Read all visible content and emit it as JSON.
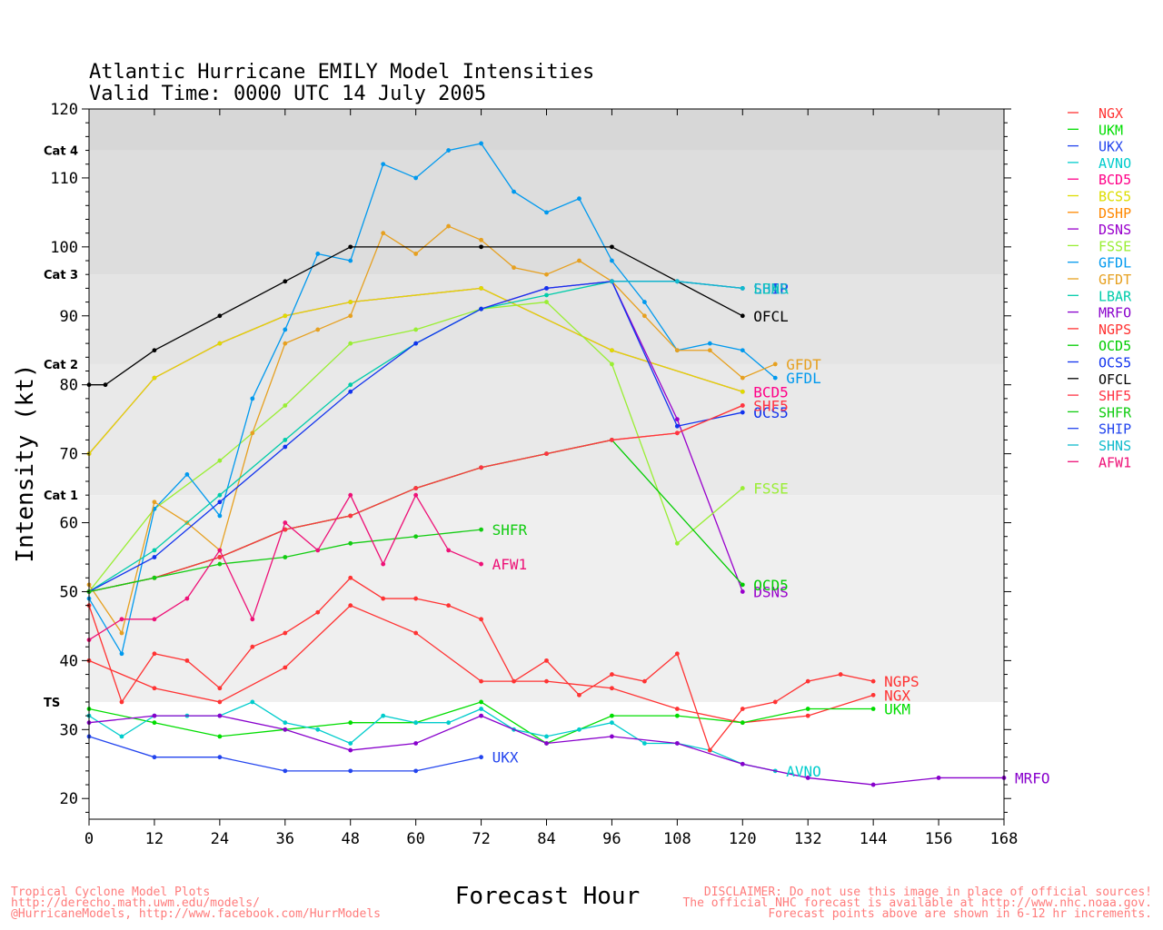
{
  "chart_data": {
    "type": "line",
    "title": "Atlantic Hurricane EMILY Model Intensities",
    "subtitle": "Valid Time: 0000 UTC 14 July 2005",
    "xlabel": "Forecast Hour",
    "ylabel": "Intensity (kt)",
    "xlim": [
      0,
      168
    ],
    "ylim": [
      17,
      120
    ],
    "x_ticks": [
      0,
      12,
      24,
      36,
      48,
      60,
      72,
      84,
      96,
      108,
      120,
      132,
      144,
      156,
      168
    ],
    "y_ticks": [
      20,
      30,
      40,
      50,
      60,
      70,
      80,
      90,
      100,
      110,
      120
    ],
    "grid": false,
    "legend_position": "right",
    "category_bands": [
      {
        "label": "TS",
        "from": 34,
        "to": 64,
        "color": "#efefef"
      },
      {
        "label": "Cat 1",
        "from": 64,
        "to": 83,
        "color": "#e9e9e9"
      },
      {
        "label": "Cat 2",
        "from": 83,
        "to": 96,
        "color": "#e4e4e4"
      },
      {
        "label": "Cat 3",
        "from": 96,
        "to": 114,
        "color": "#dddddd"
      },
      {
        "label": "Cat 4",
        "from": 114,
        "to": 120,
        "color": "#d7d7d7"
      }
    ],
    "series": [
      {
        "name": "NGX",
        "color": "#ff3333",
        "end_label": "NGX",
        "points": [
          [
            0,
            40
          ],
          [
            12,
            36
          ],
          [
            24,
            34
          ],
          [
            36,
            39
          ],
          [
            48,
            48
          ],
          [
            60,
            44
          ],
          [
            72,
            37
          ],
          [
            84,
            37
          ],
          [
            96,
            36
          ],
          [
            108,
            33
          ],
          [
            120,
            31
          ],
          [
            132,
            32
          ],
          [
            144,
            35
          ]
        ]
      },
      {
        "name": "UKM",
        "color": "#00dd00",
        "end_label": "UKM",
        "points": [
          [
            0,
            33
          ],
          [
            12,
            31
          ],
          [
            24,
            29
          ],
          [
            36,
            30
          ],
          [
            48,
            31
          ],
          [
            60,
            31
          ],
          [
            72,
            34
          ],
          [
            84,
            28
          ],
          [
            96,
            32
          ],
          [
            108,
            32
          ],
          [
            120,
            31
          ],
          [
            132,
            33
          ],
          [
            144,
            33
          ]
        ]
      },
      {
        "name": "UKX",
        "color": "#2244ee",
        "end_label": "UKX",
        "points": [
          [
            0,
            29
          ],
          [
            12,
            26
          ],
          [
            24,
            26
          ],
          [
            36,
            24
          ],
          [
            48,
            24
          ],
          [
            60,
            24
          ],
          [
            72,
            26
          ]
        ]
      },
      {
        "name": "AVNO",
        "color": "#00cccc",
        "end_label": "AVNO",
        "points": [
          [
            0,
            32
          ],
          [
            6,
            29
          ],
          [
            12,
            32
          ],
          [
            18,
            32
          ],
          [
            24,
            32
          ],
          [
            30,
            34
          ],
          [
            36,
            31
          ],
          [
            42,
            30
          ],
          [
            48,
            28
          ],
          [
            54,
            32
          ],
          [
            60,
            31
          ],
          [
            66,
            31
          ],
          [
            72,
            33
          ],
          [
            78,
            30
          ],
          [
            84,
            29
          ],
          [
            90,
            30
          ],
          [
            96,
            31
          ],
          [
            102,
            28
          ],
          [
            108,
            28
          ],
          [
            114,
            27
          ],
          [
            120,
            25
          ],
          [
            126,
            24
          ]
        ]
      },
      {
        "name": "BCD5",
        "color": "#ff0088",
        "end_label": "BCD5",
        "points": [
          [
            0,
            70
          ],
          [
            12,
            81
          ],
          [
            24,
            86
          ],
          [
            36,
            90
          ],
          [
            48,
            92
          ],
          [
            72,
            94
          ],
          [
            96,
            85
          ],
          [
            120,
            79
          ]
        ]
      },
      {
        "name": "BCS5",
        "color": "#dddd00",
        "end_label": "",
        "points": [
          [
            0,
            70
          ],
          [
            12,
            81
          ],
          [
            24,
            86
          ],
          [
            36,
            90
          ],
          [
            48,
            92
          ],
          [
            72,
            94
          ],
          [
            96,
            85
          ],
          [
            120,
            79
          ]
        ]
      },
      {
        "name": "DSHP",
        "color": "#ff8800",
        "end_label": "",
        "points": [
          [
            0,
            50
          ],
          [
            12,
            52
          ],
          [
            24,
            55
          ],
          [
            36,
            59
          ],
          [
            48,
            61
          ],
          [
            60,
            65
          ],
          [
            72,
            68
          ],
          [
            84,
            70
          ],
          [
            96,
            72
          ],
          [
            108,
            73
          ],
          [
            120,
            77
          ]
        ]
      },
      {
        "name": "DSNS",
        "color": "#9900cc",
        "end_label": "DSNS",
        "points": [
          [
            72,
            91
          ],
          [
            84,
            94
          ],
          [
            96,
            95
          ],
          [
            108,
            75
          ],
          [
            120,
            50
          ]
        ]
      },
      {
        "name": "FSSE",
        "color": "#99ee33",
        "end_label": "FSSE",
        "points": [
          [
            0,
            50
          ],
          [
            12,
            62
          ],
          [
            24,
            69
          ],
          [
            36,
            77
          ],
          [
            48,
            86
          ],
          [
            60,
            88
          ],
          [
            72,
            91
          ],
          [
            84,
            92
          ],
          [
            96,
            83
          ],
          [
            108,
            57
          ],
          [
            120,
            65
          ]
        ]
      },
      {
        "name": "GFDL",
        "color": "#0099ee",
        "end_label": "GFDL",
        "points": [
          [
            0,
            49
          ],
          [
            6,
            41
          ],
          [
            12,
            62
          ],
          [
            18,
            67
          ],
          [
            24,
            61
          ],
          [
            30,
            78
          ],
          [
            36,
            88
          ],
          [
            42,
            99
          ],
          [
            48,
            98
          ],
          [
            54,
            112
          ],
          [
            60,
            110
          ],
          [
            66,
            114
          ],
          [
            72,
            115
          ],
          [
            78,
            108
          ],
          [
            84,
            105
          ],
          [
            90,
            107
          ],
          [
            96,
            98
          ],
          [
            102,
            92
          ],
          [
            108,
            85
          ],
          [
            114,
            86
          ],
          [
            120,
            85
          ],
          [
            126,
            81
          ]
        ]
      },
      {
        "name": "GFDT",
        "color": "#e6a020",
        "end_label": "GFDT",
        "points": [
          [
            0,
            51
          ],
          [
            6,
            44
          ],
          [
            12,
            63
          ],
          [
            18,
            60
          ],
          [
            24,
            56
          ],
          [
            30,
            73
          ],
          [
            36,
            86
          ],
          [
            42,
            88
          ],
          [
            48,
            90
          ],
          [
            54,
            102
          ],
          [
            60,
            99
          ],
          [
            66,
            103
          ],
          [
            72,
            101
          ],
          [
            78,
            97
          ],
          [
            84,
            96
          ],
          [
            90,
            98
          ],
          [
            96,
            95
          ],
          [
            102,
            90
          ],
          [
            108,
            85
          ],
          [
            114,
            85
          ],
          [
            120,
            81
          ],
          [
            126,
            83
          ]
        ]
      },
      {
        "name": "LBAR",
        "color": "#00ccaa",
        "end_label": "LBAR",
        "points": [
          [
            0,
            50
          ],
          [
            12,
            56
          ],
          [
            24,
            64
          ],
          [
            36,
            72
          ],
          [
            48,
            80
          ],
          [
            60,
            86
          ],
          [
            72,
            91
          ],
          [
            84,
            93
          ],
          [
            96,
            95
          ],
          [
            108,
            95
          ],
          [
            120,
            94
          ]
        ]
      },
      {
        "name": "MRFO",
        "color": "#8800cc",
        "end_label": "MRFO",
        "points": [
          [
            0,
            31
          ],
          [
            12,
            32
          ],
          [
            24,
            32
          ],
          [
            36,
            30
          ],
          [
            48,
            27
          ],
          [
            60,
            28
          ],
          [
            72,
            32
          ],
          [
            84,
            28
          ],
          [
            96,
            29
          ],
          [
            108,
            28
          ],
          [
            120,
            25
          ],
          [
            132,
            23
          ],
          [
            144,
            22
          ],
          [
            156,
            23
          ],
          [
            168,
            23
          ]
        ]
      },
      {
        "name": "NGPS",
        "color": "#ff3333",
        "end_label": "NGPS",
        "points": [
          [
            0,
            48
          ],
          [
            6,
            34
          ],
          [
            12,
            41
          ],
          [
            18,
            40
          ],
          [
            24,
            36
          ],
          [
            30,
            42
          ],
          [
            36,
            44
          ],
          [
            42,
            47
          ],
          [
            48,
            52
          ],
          [
            54,
            49
          ],
          [
            60,
            49
          ],
          [
            66,
            48
          ],
          [
            72,
            46
          ],
          [
            78,
            37
          ],
          [
            84,
            40
          ],
          [
            90,
            35
          ],
          [
            96,
            38
          ],
          [
            102,
            37
          ],
          [
            108,
            41
          ],
          [
            114,
            27
          ],
          [
            120,
            33
          ],
          [
            126,
            34
          ],
          [
            132,
            37
          ],
          [
            138,
            38
          ],
          [
            144,
            37
          ]
        ]
      },
      {
        "name": "OCD5",
        "color": "#00cc00",
        "end_label": "OCD5",
        "points": [
          [
            0,
            50
          ],
          [
            12,
            52
          ],
          [
            24,
            55
          ],
          [
            36,
            59
          ],
          [
            48,
            61
          ],
          [
            60,
            65
          ],
          [
            72,
            68
          ],
          [
            84,
            70
          ],
          [
            96,
            72
          ],
          [
            120,
            51
          ]
        ]
      },
      {
        "name": "OCS5",
        "color": "#1133ee",
        "end_label": "OCS5",
        "points": [
          [
            0,
            50
          ],
          [
            12,
            55
          ],
          [
            24,
            63
          ],
          [
            36,
            71
          ],
          [
            48,
            79
          ],
          [
            60,
            86
          ],
          [
            72,
            91
          ],
          [
            84,
            94
          ],
          [
            96,
            95
          ],
          [
            108,
            74
          ],
          [
            120,
            76
          ]
        ]
      },
      {
        "name": "OFCL",
        "color": "#000000",
        "end_label": "OFCL",
        "points": [
          [
            0,
            80
          ],
          [
            3,
            80
          ],
          [
            12,
            85
          ],
          [
            24,
            90
          ],
          [
            36,
            95
          ],
          [
            48,
            100
          ],
          [
            72,
            100
          ],
          [
            96,
            100
          ],
          [
            120,
            90
          ]
        ]
      },
      {
        "name": "SHF5",
        "color": "#ff3344",
        "end_label": "SHF5",
        "points": [
          [
            0,
            50
          ],
          [
            12,
            52
          ],
          [
            24,
            55
          ],
          [
            36,
            59
          ],
          [
            48,
            61
          ],
          [
            60,
            65
          ],
          [
            72,
            68
          ],
          [
            84,
            70
          ],
          [
            96,
            72
          ],
          [
            108,
            73
          ],
          [
            120,
            77
          ]
        ]
      },
      {
        "name": "SHFR",
        "color": "#11cc11",
        "end_label": "SHFR",
        "points": [
          [
            0,
            50
          ],
          [
            12,
            52
          ],
          [
            24,
            54
          ],
          [
            36,
            55
          ],
          [
            48,
            57
          ],
          [
            60,
            58
          ],
          [
            72,
            59
          ]
        ]
      },
      {
        "name": "SHIP",
        "color": "#2244ee",
        "end_label": "SHIP",
        "points": [
          [
            96,
            95
          ],
          [
            108,
            95
          ],
          [
            120,
            94
          ]
        ]
      },
      {
        "name": "SHNS",
        "color": "#11bbcc",
        "end_label": "SHNS",
        "points": [
          [
            96,
            95
          ],
          [
            108,
            95
          ],
          [
            120,
            94
          ]
        ]
      },
      {
        "name": "AFW1",
        "color": "#ee1177",
        "end_label": "AFW1",
        "points": [
          [
            0,
            43
          ],
          [
            6,
            46
          ],
          [
            12,
            46
          ],
          [
            18,
            49
          ],
          [
            24,
            56
          ],
          [
            30,
            46
          ],
          [
            36,
            60
          ],
          [
            42,
            56
          ],
          [
            48,
            64
          ],
          [
            54,
            54
          ],
          [
            60,
            64
          ],
          [
            66,
            56
          ],
          [
            72,
            54
          ]
        ]
      }
    ]
  },
  "footer": {
    "left": [
      "Tropical Cyclone Model Plots",
      "http://derecho.math.uwm.edu/models/",
      "@HurricaneModels, http://www.facebook.com/HurrModels"
    ],
    "right": [
      "DISCLAIMER: Do not use this image in place of official sources!",
      "The official NHC forecast is available at http://www.nhc.noaa.gov.",
      "Forecast points above are shown in 6-12 hr increments."
    ]
  }
}
